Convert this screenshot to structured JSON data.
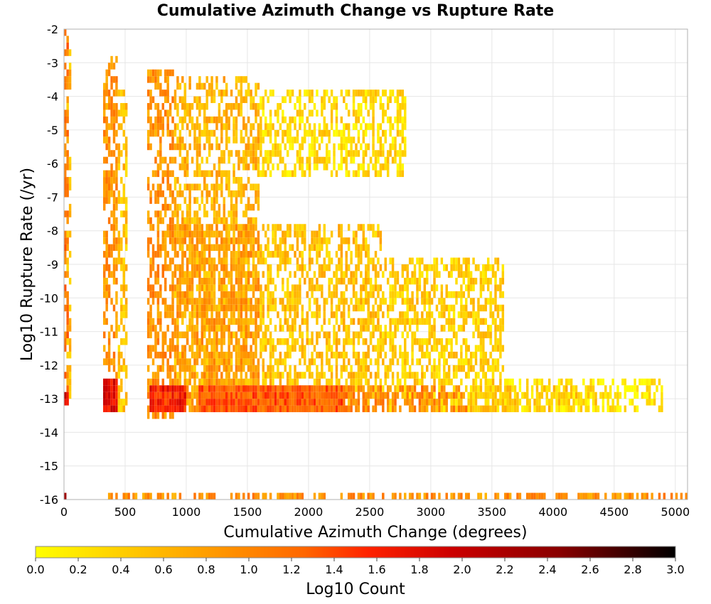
{
  "chart_data": {
    "type": "heatmap",
    "title": "Cumulative Azimuth Change vs Rupture Rate",
    "xlabel": "Cumulative Azimuth Change (degrees)",
    "ylabel": "Log10 Rupture Rate (/yr)",
    "xlim": [
      0,
      5100
    ],
    "ylim": [
      -16,
      -2
    ],
    "x_ticks": [
      0,
      500,
      1000,
      1500,
      2000,
      2500,
      3000,
      3500,
      4000,
      4500,
      5000
    ],
    "y_ticks": [
      -2,
      -3,
      -4,
      -5,
      -6,
      -7,
      -8,
      -9,
      -10,
      -11,
      -12,
      -13,
      -14,
      -15,
      -16
    ],
    "grid": true,
    "colorbar": {
      "label": "Log10 Count",
      "range": [
        0.0,
        3.0
      ],
      "ticks": [
        "0.0",
        "0.2",
        "0.4",
        "0.6",
        "0.8",
        "1.0",
        "1.2",
        "1.4",
        "1.6",
        "1.8",
        "2.0",
        "2.2",
        "2.4",
        "2.6",
        "2.8",
        "3.0"
      ],
      "colors": [
        "#ffff00",
        "#ffcc00",
        "#ff9900",
        "#ff6600",
        "#ff2200",
        "#cc0000",
        "#880000",
        "#000000"
      ]
    },
    "bin_size": {
      "x": 20,
      "y": 0.2
    },
    "regions": [
      {
        "x": [
          0,
          25
        ],
        "y": [
          -13.4,
          -2.2
        ],
        "value": 1.1
      },
      {
        "x": [
          0,
          25
        ],
        "y": [
          -13.2,
          -12.8
        ],
        "value": 1.8
      },
      {
        "x": [
          25,
          60
        ],
        "y": [
          -13.4,
          -2.8
        ],
        "value": 0.6
      },
      {
        "x": [
          320,
          440
        ],
        "y": [
          -13.4,
          -3.0
        ],
        "value": 0.9
      },
      {
        "x": [
          320,
          440
        ],
        "y": [
          -13.4,
          -12.6
        ],
        "value": 1.8
      },
      {
        "x": [
          440,
          520
        ],
        "y": [
          -13.4,
          -4.0
        ],
        "value": 0.5
      },
      {
        "x": [
          680,
          900
        ],
        "y": [
          -13.6,
          -3.4
        ],
        "value": 0.9
      },
      {
        "x": [
          700,
          1000
        ],
        "y": [
          -13.4,
          -12.8
        ],
        "value": 1.6
      },
      {
        "x": [
          900,
          1600
        ],
        "y": [
          -13.4,
          -3.6
        ],
        "value": 0.6
      },
      {
        "x": [
          900,
          1600
        ],
        "y": [
          -13.4,
          -8.0
        ],
        "value": 0.8
      },
      {
        "x": [
          1100,
          2300
        ],
        "y": [
          -13.4,
          -12.8
        ],
        "value": 1.3
      },
      {
        "x": [
          1600,
          2600
        ],
        "y": [
          -13.4,
          -8.0
        ],
        "value": 0.5
      },
      {
        "x": [
          1600,
          2800
        ],
        "y": [
          -6.4,
          -3.8
        ],
        "value": 0.3
      },
      {
        "x": [
          2300,
          3300
        ],
        "y": [
          -13.4,
          -12.8
        ],
        "value": 1.0
      },
      {
        "x": [
          2600,
          3600
        ],
        "y": [
          -13.4,
          -9.0
        ],
        "value": 0.4
      },
      {
        "x": [
          3300,
          4400
        ],
        "y": [
          -13.4,
          -12.8
        ],
        "value": 0.4
      },
      {
        "x": [
          3600,
          4900
        ],
        "y": [
          -13.4,
          -12.6
        ],
        "value": 0.15
      },
      {
        "x": [
          330,
          5100
        ],
        "y": [
          -16.0,
          -15.8
        ],
        "value": 0.9
      },
      {
        "x": [
          0,
          20
        ],
        "y": [
          -16.0,
          -15.8
        ],
        "value": 2.0
      }
    ]
  }
}
